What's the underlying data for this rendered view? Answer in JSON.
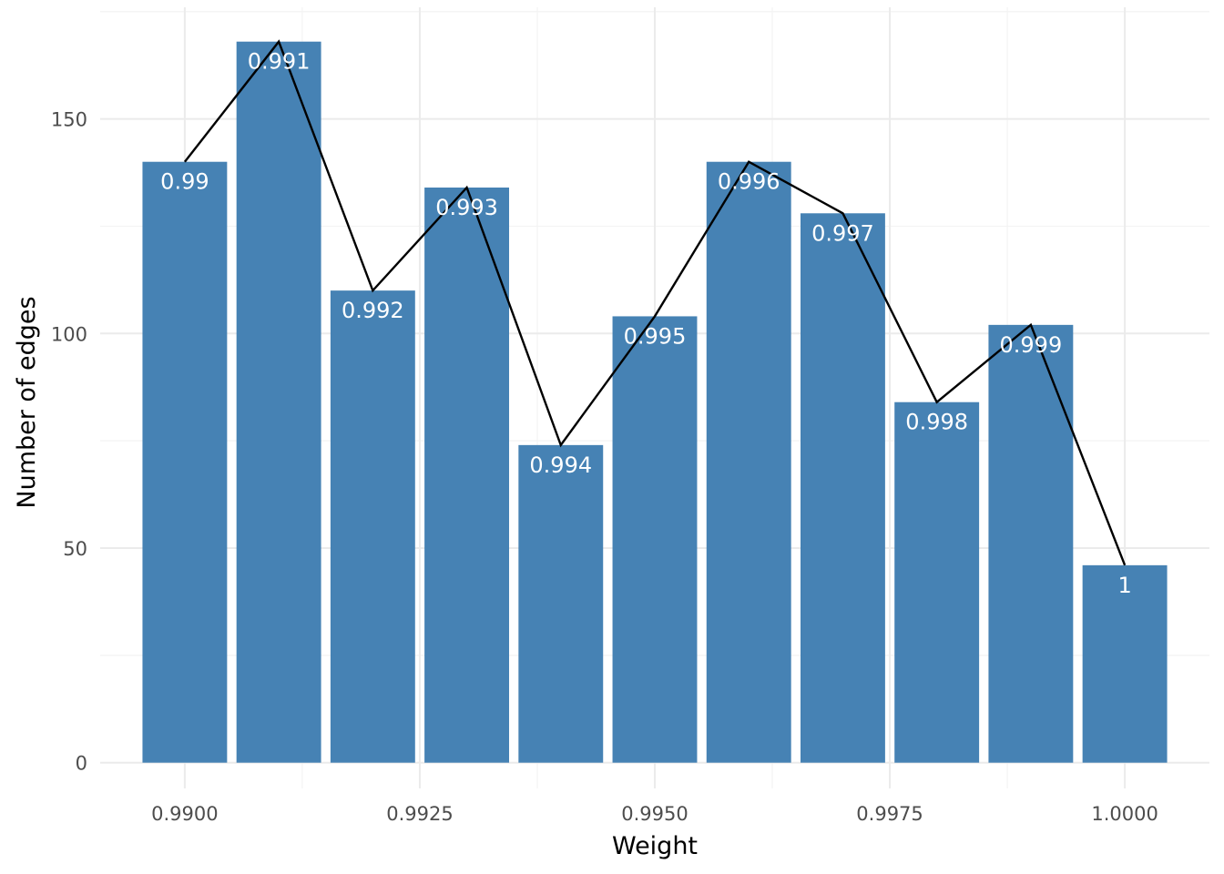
{
  "chart_data": {
    "type": "bar",
    "xlabel": "Weight",
    "ylabel": "Number of edges",
    "x": [
      0.99,
      0.991,
      0.992,
      0.993,
      0.994,
      0.995,
      0.996,
      0.997,
      0.998,
      0.999,
      1.0
    ],
    "values": [
      140,
      168,
      110,
      134,
      74,
      104,
      140,
      128,
      84,
      102,
      46
    ],
    "bar_labels": [
      "0.99",
      "0.991",
      "0.992",
      "0.993",
      "0.994",
      "0.995",
      "0.996",
      "0.997",
      "0.998",
      "0.999",
      "1"
    ],
    "xlim": [
      0.9891,
      1.0009
    ],
    "ylim": [
      -6,
      176
    ],
    "x_ticks": [
      0.99,
      0.9925,
      0.995,
      0.9975,
      1.0
    ],
    "x_tick_labels": [
      "0.9900",
      "0.9925",
      "0.9950",
      "0.9975",
      "1.0000"
    ],
    "y_ticks": [
      0,
      50,
      100,
      150
    ],
    "y_tick_labels": [
      "0",
      "50",
      "100",
      "150"
    ],
    "overlay": "line connecting bar tops",
    "grid": true,
    "legend": "none",
    "colors": {
      "bar": "#4682b4",
      "line": "#000000",
      "bar_label": "#ffffff",
      "grid": "#ebebeb"
    }
  }
}
